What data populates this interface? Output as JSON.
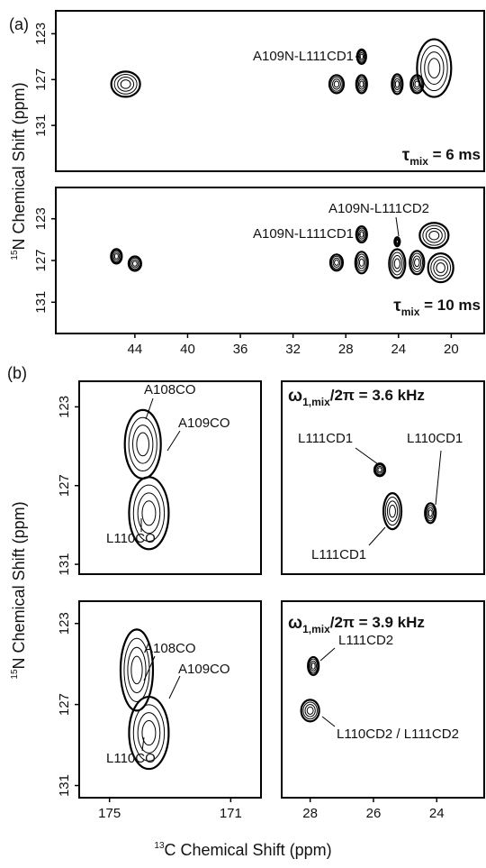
{
  "figure": {
    "panel_a": "(a)",
    "panel_b": "(b)",
    "y_label": {
      "sup": "15",
      "text": "N Chemical Shift (ppm)"
    },
    "x_label": {
      "sup": "13",
      "text": "C Chemical Shift (ppm)"
    }
  },
  "chart_data": [
    {
      "type": "contour",
      "xlim": [
        50,
        17.5
      ],
      "ylim": [
        121,
        135
      ],
      "yticks": [
        123,
        127,
        131
      ],
      "title": {
        "symbol": "τ",
        "sub": "mix",
        "rest": " = 6 ms"
      },
      "annotations": [
        "A109N-L111CD1"
      ],
      "peaks": {
        "x": [
          44.7,
          28.7,
          26.8,
          26.8,
          24.1,
          22.6,
          21.3
        ],
        "y": [
          127.4,
          127.4,
          125,
          127.4,
          127.4,
          127.4,
          126
        ]
      }
    },
    {
      "type": "contour",
      "xlim": [
        50,
        17.5
      ],
      "ylim": [
        120,
        134
      ],
      "yticks": [
        123,
        127,
        131
      ],
      "xticks": [
        44,
        40,
        36,
        32,
        28,
        24,
        20
      ],
      "title": {
        "symbol": "τ",
        "sub": "mix",
        "rest": " = 10 ms"
      },
      "annotations": [
        "A109N-L111CD1",
        "A109N-L111CD2"
      ],
      "peaks": {
        "x": [
          45.4,
          44.0,
          28.7,
          26.8,
          26.8,
          24.1,
          24.1,
          22.6,
          21.3,
          20.8
        ],
        "y": [
          126.6,
          127.3,
          127.2,
          124.5,
          127.2,
          125.2,
          127.3,
          127.2,
          124.6,
          127.7
        ]
      }
    },
    {
      "type": "contour",
      "xlim": [
        176,
        170
      ],
      "ylim": [
        121.7,
        131.5
      ],
      "yticks": [
        123,
        127,
        131
      ],
      "annotations": [
        "A108CO",
        "A109CO",
        "L110CO"
      ],
      "peaks": {
        "x": [
          173.9,
          173.7
        ],
        "y": [
          124.9,
          128.4
        ]
      }
    },
    {
      "type": "contour",
      "xlim": [
        28.9,
        22.5
      ],
      "ylim": [
        121.7,
        131.5
      ],
      "title": {
        "symbol": "ω",
        "sub": "1,mix",
        "rest": "/2π = 3.6 kHz"
      },
      "annotations": [
        "L111CD1",
        "L110CD1",
        "L111CD1"
      ],
      "peaks": {
        "x": [
          25.8,
          25.4,
          24.2
        ],
        "y": [
          126.2,
          128.3,
          128.4
        ]
      }
    },
    {
      "type": "contour",
      "xlim": [
        176,
        170
      ],
      "ylim": [
        121.9,
        131.6
      ],
      "yticks": [
        123,
        127,
        131
      ],
      "xticks": [
        175,
        171
      ],
      "annotations": [
        "A108CO",
        "A109CO",
        "L110CO"
      ],
      "peaks": {
        "x": [
          174.1,
          173.7
        ],
        "y": [
          125.3,
          128.4
        ]
      }
    },
    {
      "type": "contour",
      "xlim": [
        28.9,
        22.5
      ],
      "ylim": [
        121.9,
        131.6
      ],
      "xticks": [
        28,
        26,
        24
      ],
      "title": {
        "symbol": "ω",
        "sub": "1,mix",
        "rest": "/2π = 3.9 kHz"
      },
      "annotations": [
        "L111CD2",
        "L110CD2 / L111CD2"
      ],
      "peaks": {
        "x": [
          27.9,
          28.0
        ],
        "y": [
          125.1,
          127.3
        ]
      }
    }
  ]
}
